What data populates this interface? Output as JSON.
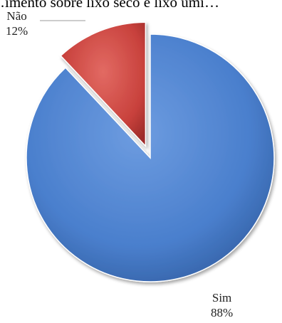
{
  "chart_data": {
    "type": "pie",
    "title": "…imento sobre lixo seco e lixo úmi…",
    "categories": [
      "Sim",
      "Não"
    ],
    "values": [
      88,
      12
    ],
    "value_labels": [
      "88%",
      "12%"
    ],
    "exploded": [
      "Não"
    ],
    "legend": "none",
    "colors": {
      "Sim": "#4a7fcd",
      "Não": "#c8413c"
    }
  }
}
